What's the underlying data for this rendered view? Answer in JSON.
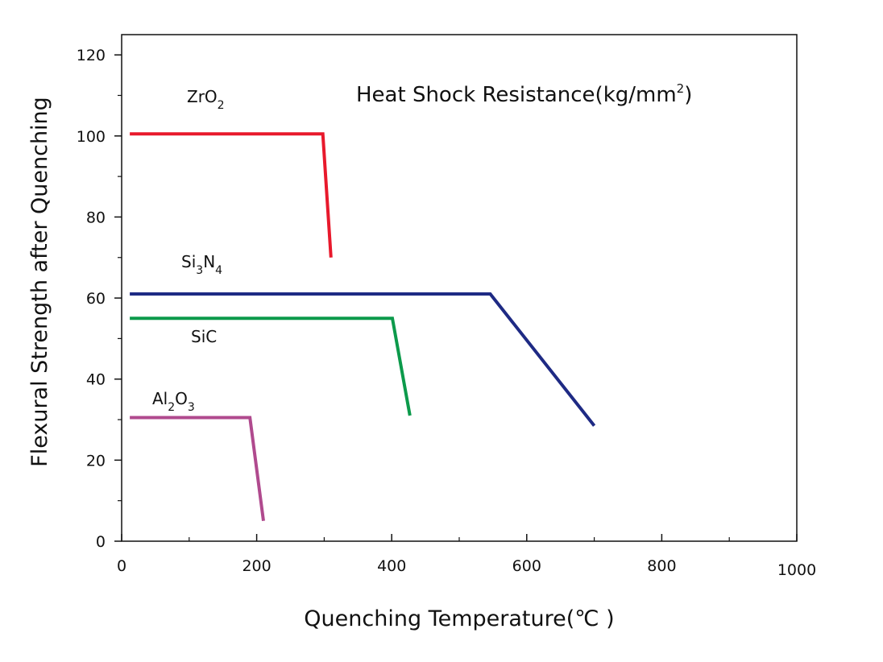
{
  "chart_data": {
    "type": "line",
    "title": {
      "main": "Heat Shock Resistance(kg/mm",
      "sup": "2",
      "close": ")"
    },
    "xlabel": "Quenching Temperature(℃ )",
    "ylabel": "Flexural Strength after Quenching",
    "xlim": [
      0,
      1000
    ],
    "ylim": [
      0,
      125
    ],
    "x_ticks": [
      "0",
      "200",
      "400",
      "600",
      "800",
      "1000"
    ],
    "y_ticks": [
      "0",
      "20",
      "40",
      "60",
      "80",
      "100",
      "120"
    ],
    "x_tick_values": [
      0,
      200,
      400,
      600,
      800,
      1000
    ],
    "y_tick_values": [
      0,
      20,
      40,
      60,
      80,
      100,
      120
    ],
    "x_minor_ticks": [
      100,
      300,
      500,
      700,
      900
    ],
    "y_minor_ticks": [
      10,
      30,
      50,
      70,
      90,
      110
    ],
    "grid": false,
    "series": [
      {
        "label_parts": [
          {
            "t": "ZrO"
          },
          {
            "t": "2",
            "sub": true
          }
        ],
        "color": "#e8192c",
        "x": [
          12,
          298,
          310
        ],
        "y": [
          100.5,
          100.5,
          70
        ]
      },
      {
        "label_parts": [
          {
            "t": "Si"
          },
          {
            "t": "3",
            "sub": true
          },
          {
            "t": "N"
          },
          {
            "t": "4",
            "sub": true
          }
        ],
        "color": "#1e2a84",
        "x": [
          12,
          546,
          700
        ],
        "y": [
          61,
          61,
          28.5
        ]
      },
      {
        "label_parts": [
          {
            "t": "SiC"
          }
        ],
        "color": "#0c9a4b",
        "x": [
          12,
          401,
          427
        ],
        "y": [
          55,
          55,
          31
        ]
      },
      {
        "label_parts": [
          {
            "t": "Al"
          },
          {
            "t": "2",
            "sub": true
          },
          {
            "t": "O"
          },
          {
            "t": "3",
            "sub": true
          }
        ],
        "color": "#b04a8e",
        "x": [
          12,
          190,
          210
        ],
        "y": [
          30.5,
          30.5,
          5
        ]
      }
    ]
  }
}
